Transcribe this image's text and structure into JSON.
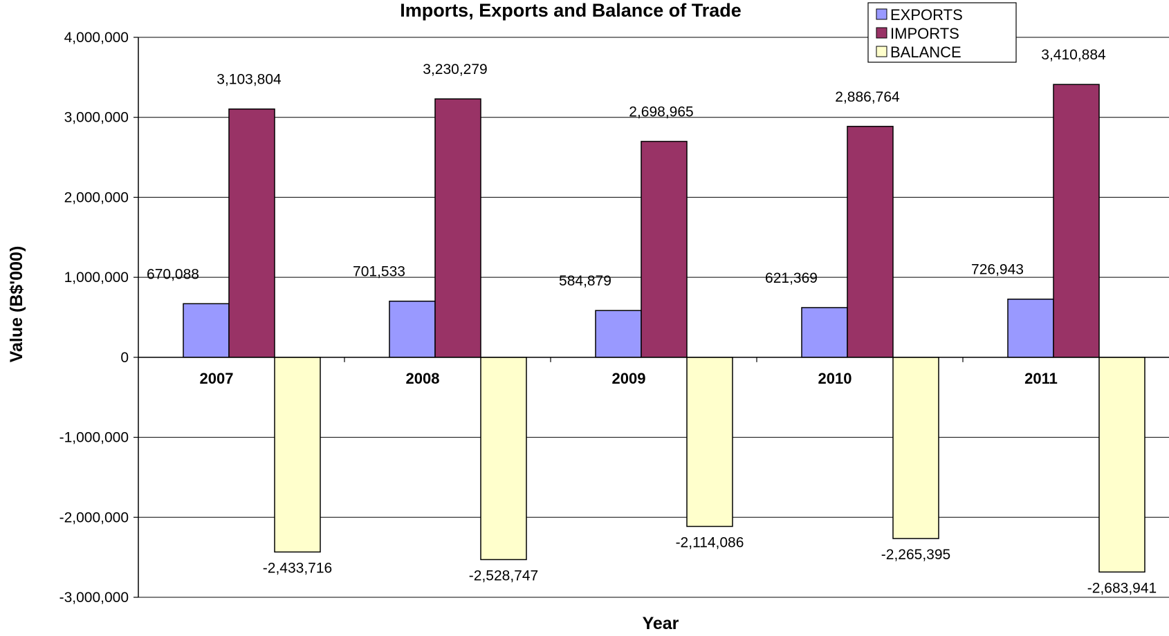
{
  "chart_data": {
    "type": "bar",
    "title": "Imports, Exports and Balance of Trade",
    "xlabel": "Year",
    "ylabel": "Value (B$'000)",
    "categories": [
      "2007",
      "2008",
      "2009",
      "2010",
      "2011"
    ],
    "series": [
      {
        "name": "EXPORTS",
        "color": "#9999ff",
        "values": [
          670088,
          701533,
          584879,
          621369,
          726943
        ],
        "labels": [
          "670,088",
          "701,533",
          "584,879",
          "621,369",
          "726,943"
        ]
      },
      {
        "name": "IMPORTS",
        "color": "#993366",
        "values": [
          3103804,
          3230279,
          2698965,
          2886764,
          3410884
        ],
        "labels": [
          "3,103,804",
          "3,230,279",
          "2,698,965",
          "2,886,764",
          "3,410,884"
        ]
      },
      {
        "name": "BALANCE",
        "color": "#ffffcc",
        "values": [
          -2433716,
          -2528747,
          -2114086,
          -2265395,
          -2683941
        ],
        "labels": [
          "-2,433,716",
          "-2,528,747",
          "-2,114,086",
          "-2,265,395",
          "-2,683,941"
        ]
      }
    ],
    "ylim": [
      -3000000,
      4000000
    ],
    "yticks": [
      4000000,
      3000000,
      2000000,
      1000000,
      0,
      -1000000,
      -2000000,
      -3000000
    ],
    "ytick_labels": [
      "4,000,000",
      "3,000,000",
      "2,000,000",
      "1,000,000",
      "0",
      "-1,000,000",
      "-2,000,000",
      "-3,000,000"
    ],
    "grid": true,
    "legend": "top-right"
  }
}
